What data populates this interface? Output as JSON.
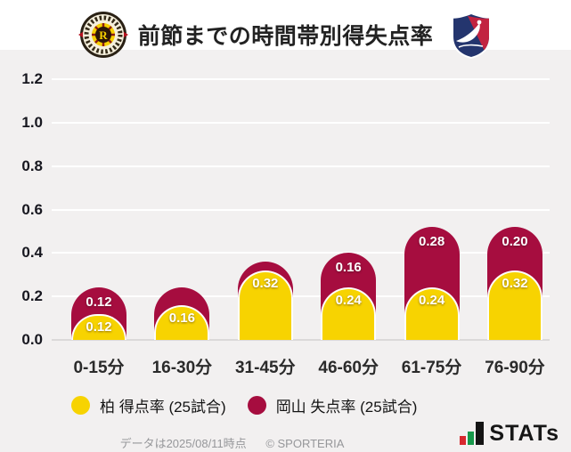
{
  "header": {
    "title": "前節までの時間帯別得失点率"
  },
  "chart_data": {
    "type": "bar",
    "stacked": true,
    "categories": [
      "0-15分",
      "16-30分",
      "31-45分",
      "46-60分",
      "61-75分",
      "76-90分"
    ],
    "series": [
      {
        "name": "柏 得点率 (25試合)",
        "color": "#f7d301",
        "values": [
          0.12,
          0.16,
          0.32,
          0.24,
          0.24,
          0.32
        ],
        "labels_visible": [
          true,
          true,
          true,
          true,
          true,
          true
        ]
      },
      {
        "name": "岡山 失点率 (25試合)",
        "color": "#a60d3f",
        "values": [
          0.12,
          0.08,
          0.04,
          0.16,
          0.28,
          0.2
        ],
        "labels_visible": [
          true,
          false,
          false,
          true,
          true,
          true
        ]
      }
    ],
    "y_ticks": [
      "0.0",
      "0.2",
      "0.4",
      "0.6",
      "0.8",
      "1.0",
      "1.2"
    ],
    "ylim": [
      0,
      1.2
    ],
    "grid": true,
    "gridline_color": "#ffffff",
    "plot_background": "#f2f0f0",
    "legend_position": "bottom"
  },
  "footer": {
    "data_note": "データは2025/08/11時点",
    "copyright": "© SPORTERIA",
    "brand": "STATs"
  }
}
